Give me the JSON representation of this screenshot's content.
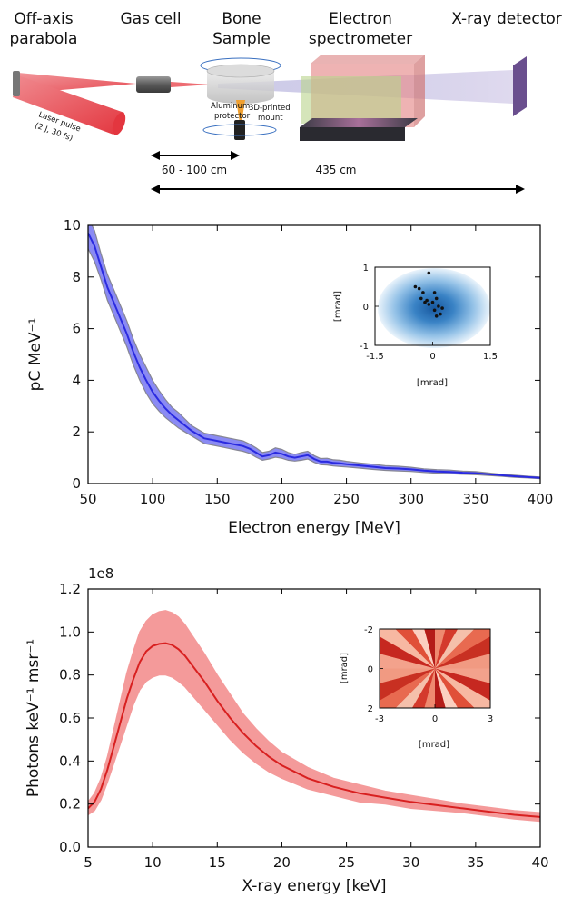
{
  "setup": {
    "labels": {
      "parabola": [
        "Off-axis",
        "parabola"
      ],
      "gas_cell": "Gas cell",
      "bone": [
        "Bone",
        "Sample"
      ],
      "spectrometer": [
        "Electron",
        "spectrometer"
      ],
      "detector": "X-ray detector",
      "laser": [
        "Laser pulse",
        "(2 J, 30 fs)"
      ],
      "aluminum": [
        "Aluminum",
        "protector"
      ],
      "mount": [
        "3D-printed",
        "mount"
      ],
      "distance_short": "60 - 100 cm",
      "distance_long": "435 cm"
    },
    "colors": {
      "laser": "#e8474f",
      "spectrometer_red": "#e58b8b",
      "spectrometer_green": "#b9d48c",
      "detector": "#6a4f8e",
      "xray_beam": "#c8bfe0"
    }
  },
  "chart_data": [
    {
      "type": "area",
      "title": "",
      "xlabel": "Electron energy [MeV]",
      "ylabel": "pC MeV⁻¹",
      "xlim": [
        50,
        400
      ],
      "ylim": [
        0,
        10
      ],
      "xticks": [
        50,
        100,
        150,
        200,
        250,
        300,
        350,
        400
      ],
      "yticks": [
        0,
        2,
        4,
        6,
        8,
        10
      ],
      "grid": false,
      "color": "#2a2ae0",
      "band_color": "#5a5aef",
      "band_edge": "#555566",
      "series": [
        {
          "x": [
            50,
            55,
            60,
            65,
            70,
            75,
            80,
            85,
            90,
            95,
            100,
            105,
            110,
            115,
            120,
            125,
            130,
            135,
            140,
            145,
            150,
            155,
            160,
            165,
            170,
            175,
            180,
            185,
            190,
            195,
            200,
            205,
            210,
            215,
            220,
            225,
            230,
            235,
            240,
            245,
            250,
            260,
            270,
            280,
            290,
            300,
            310,
            320,
            330,
            340,
            350,
            360,
            370,
            380,
            390,
            400
          ],
          "y": [
            9.7,
            9.2,
            8.4,
            7.6,
            7.0,
            6.4,
            5.8,
            5.1,
            4.5,
            4.0,
            3.55,
            3.2,
            2.9,
            2.65,
            2.45,
            2.25,
            2.05,
            1.9,
            1.75,
            1.7,
            1.65,
            1.6,
            1.55,
            1.5,
            1.45,
            1.35,
            1.2,
            1.05,
            1.1,
            1.2,
            1.15,
            1.05,
            1.0,
            1.05,
            1.1,
            0.95,
            0.85,
            0.85,
            0.8,
            0.78,
            0.75,
            0.7,
            0.65,
            0.6,
            0.58,
            0.55,
            0.5,
            0.47,
            0.45,
            0.42,
            0.4,
            0.36,
            0.32,
            0.28,
            0.25,
            0.22
          ],
          "lower": [
            9.1,
            8.6,
            7.9,
            7.1,
            6.5,
            5.9,
            5.3,
            4.6,
            4.0,
            3.5,
            3.1,
            2.8,
            2.55,
            2.35,
            2.15,
            2.0,
            1.85,
            1.7,
            1.55,
            1.5,
            1.45,
            1.4,
            1.35,
            1.3,
            1.25,
            1.17,
            1.02,
            0.9,
            0.95,
            1.02,
            0.98,
            0.9,
            0.87,
            0.9,
            0.95,
            0.82,
            0.73,
            0.72,
            0.68,
            0.66,
            0.64,
            0.6,
            0.55,
            0.51,
            0.49,
            0.47,
            0.43,
            0.4,
            0.38,
            0.36,
            0.34,
            0.31,
            0.28,
            0.24,
            0.22,
            0.19
          ],
          "upper": [
            10.3,
            9.8,
            8.9,
            8.1,
            7.5,
            6.9,
            6.3,
            5.6,
            5.0,
            4.5,
            4.0,
            3.6,
            3.25,
            2.95,
            2.75,
            2.5,
            2.25,
            2.1,
            1.95,
            1.9,
            1.85,
            1.8,
            1.75,
            1.7,
            1.65,
            1.53,
            1.38,
            1.2,
            1.25,
            1.38,
            1.32,
            1.2,
            1.13,
            1.2,
            1.25,
            1.08,
            0.97,
            0.98,
            0.92,
            0.9,
            0.86,
            0.8,
            0.75,
            0.69,
            0.67,
            0.63,
            0.57,
            0.54,
            0.52,
            0.48,
            0.46,
            0.41,
            0.36,
            0.32,
            0.28,
            0.25
          ]
        }
      ],
      "inset": {
        "xlabel": "[mrad]",
        "ylabel": "[mrad]",
        "xlim": [
          -1.5,
          1.5
        ],
        "ylim": [
          1,
          -1
        ],
        "xticks": [
          -1.5,
          0,
          1.5
        ],
        "yticks": [
          -1,
          0,
          1
        ],
        "points": [
          [
            0.1,
            -0.25
          ],
          [
            0.2,
            -0.2
          ],
          [
            0.05,
            -0.1
          ],
          [
            0.25,
            -0.05
          ],
          [
            0.15,
            0.0
          ],
          [
            -0.1,
            0.05
          ],
          [
            -0.2,
            0.1
          ],
          [
            0.0,
            0.1
          ],
          [
            -0.15,
            0.15
          ],
          [
            0.1,
            0.2
          ],
          [
            -0.3,
            0.2
          ],
          [
            -0.25,
            0.35
          ],
          [
            0.05,
            0.35
          ],
          [
            -0.35,
            0.45
          ],
          [
            -0.45,
            0.5
          ],
          [
            -0.1,
            0.85
          ]
        ]
      }
    },
    {
      "type": "area",
      "title": "",
      "offset_label": "1e8",
      "xlabel": "X-ray energy [keV]",
      "ylabel": "Photons keV⁻¹ msr⁻¹",
      "xlim": [
        5,
        40
      ],
      "ylim": [
        0,
        1.2
      ],
      "xticks": [
        5,
        10,
        15,
        20,
        25,
        30,
        35,
        40
      ],
      "yticks": [
        0.0,
        0.2,
        0.4,
        0.6,
        0.8,
        1.0,
        1.2
      ],
      "grid": false,
      "color": "#d82020",
      "band_color": "#f07070",
      "series": [
        {
          "x": [
            5,
            5.5,
            6,
            6.5,
            7,
            7.5,
            8,
            8.5,
            9,
            9.5,
            10,
            10.5,
            11,
            11.5,
            12,
            12.5,
            13,
            14,
            15,
            16,
            17,
            18,
            19,
            20,
            22,
            24,
            26,
            28,
            30,
            32,
            34,
            36,
            38,
            40
          ],
          "y": [
            0.18,
            0.21,
            0.27,
            0.36,
            0.47,
            0.58,
            0.69,
            0.78,
            0.86,
            0.91,
            0.935,
            0.945,
            0.948,
            0.94,
            0.92,
            0.89,
            0.85,
            0.77,
            0.68,
            0.6,
            0.53,
            0.47,
            0.42,
            0.38,
            0.32,
            0.28,
            0.25,
            0.23,
            0.21,
            0.195,
            0.18,
            0.165,
            0.15,
            0.14
          ],
          "lower": [
            0.15,
            0.17,
            0.22,
            0.3,
            0.39,
            0.48,
            0.57,
            0.66,
            0.73,
            0.77,
            0.79,
            0.8,
            0.8,
            0.79,
            0.77,
            0.745,
            0.71,
            0.64,
            0.57,
            0.5,
            0.44,
            0.39,
            0.35,
            0.32,
            0.27,
            0.24,
            0.21,
            0.2,
            0.18,
            0.17,
            0.16,
            0.145,
            0.13,
            0.12
          ],
          "upper": [
            0.21,
            0.25,
            0.32,
            0.42,
            0.55,
            0.68,
            0.81,
            0.91,
            1.0,
            1.05,
            1.08,
            1.095,
            1.1,
            1.09,
            1.07,
            1.035,
            0.99,
            0.9,
            0.8,
            0.71,
            0.62,
            0.55,
            0.49,
            0.44,
            0.37,
            0.32,
            0.29,
            0.26,
            0.24,
            0.22,
            0.2,
            0.185,
            0.17,
            0.16
          ]
        }
      ],
      "inset": {
        "xlabel": "[mrad]",
        "ylabel": "[mrad]",
        "xlim": [
          -3,
          3
        ],
        "ylim": [
          -2,
          2
        ],
        "xticks": [
          -3,
          0,
          3
        ],
        "yticks": [
          -2,
          0,
          2
        ]
      }
    }
  ]
}
